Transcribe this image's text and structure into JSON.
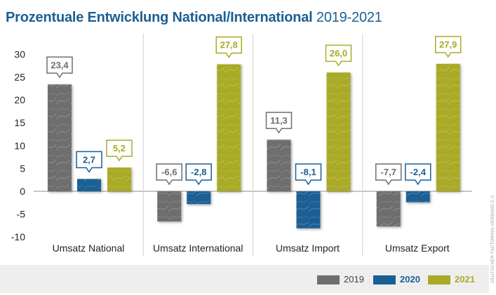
{
  "title": {
    "main": "Prozentuale Entwicklung National/International",
    "years": "2019-2021"
  },
  "colors": {
    "2019": "#6e6e6e",
    "2020": "#1a5f94",
    "2021": "#a9aa28"
  },
  "credit": "DEUTSCHER FACTORING-VERBAND E.V.",
  "chart_data": {
    "type": "bar",
    "categories": [
      "Umsatz National",
      "Umsatz International",
      "Umsatz Import",
      "Umsatz Export"
    ],
    "series": [
      {
        "name": "2019",
        "values": [
          23.4,
          -6.6,
          11.3,
          -7.7
        ],
        "labels": [
          "23,4",
          "-6,6",
          "11,3",
          "-7,7"
        ]
      },
      {
        "name": "2020",
        "values": [
          2.7,
          -2.8,
          -8.1,
          -2.4
        ],
        "labels": [
          "2,7",
          "-2,8",
          "-8,1",
          "-2,4"
        ]
      },
      {
        "name": "2021",
        "values": [
          5.2,
          27.8,
          26.0,
          27.9
        ],
        "labels": [
          "5,2",
          "27,8",
          "26,0",
          "27,9"
        ]
      }
    ],
    "yticks": [
      -10,
      -5,
      0,
      5,
      10,
      15,
      20,
      25,
      30
    ],
    "ylim": [
      -10,
      30
    ],
    "grid": false,
    "legend": "bottom-right",
    "title": "Prozentuale Entwicklung National/International 2019-2021",
    "xlabel": "",
    "ylabel": ""
  }
}
